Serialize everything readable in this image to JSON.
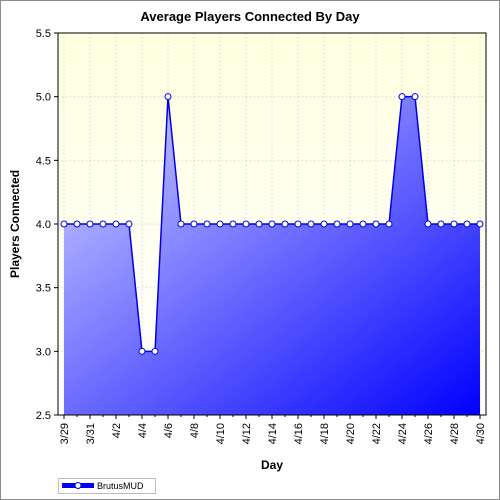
{
  "chart_data": {
    "type": "area",
    "title": "Average Players Connected By Day",
    "xlabel": "Day",
    "ylabel": "Players Connected",
    "ylim": [
      2.5,
      5.5
    ],
    "yticks": [
      "2.5",
      "3.0",
      "3.5",
      "4.0",
      "4.5",
      "5.0",
      "5.5"
    ],
    "x_tick_labels": [
      "3/29",
      "3/31",
      "4/2",
      "4/4",
      "4/6",
      "4/8",
      "4/10",
      "4/12",
      "4/14",
      "4/16",
      "4/18",
      "4/20",
      "4/22",
      "4/24",
      "4/26",
      "4/28",
      "4/30"
    ],
    "x": [
      "3/29",
      "3/30",
      "3/31",
      "4/1",
      "4/2",
      "4/3",
      "4/4",
      "4/5",
      "4/6",
      "4/7",
      "4/8",
      "4/9",
      "4/10",
      "4/11",
      "4/12",
      "4/13",
      "4/14",
      "4/15",
      "4/16",
      "4/17",
      "4/18",
      "4/19",
      "4/20",
      "4/21",
      "4/22",
      "4/23",
      "4/24",
      "4/25",
      "4/26",
      "4/27",
      "4/28",
      "4/29",
      "4/30"
    ],
    "series": [
      {
        "name": "BrutusMUD",
        "values": [
          4,
          4,
          4,
          4,
          4,
          4,
          3,
          3,
          5,
          4,
          4,
          4,
          4,
          4,
          4,
          4,
          4,
          4,
          4,
          4,
          4,
          4,
          4,
          4,
          4,
          4,
          5,
          5,
          4,
          4,
          4,
          4,
          4
        ]
      }
    ],
    "grid": true,
    "legend_position": "bottom-left",
    "colors": {
      "plot_background_top": "#ffffe0",
      "plot_background_bottom": "#ffffff",
      "area_light": "#d6d6ff",
      "area_dark": "#0000ff",
      "line": "#0000e6",
      "marker_fill": "#ffffff"
    }
  }
}
